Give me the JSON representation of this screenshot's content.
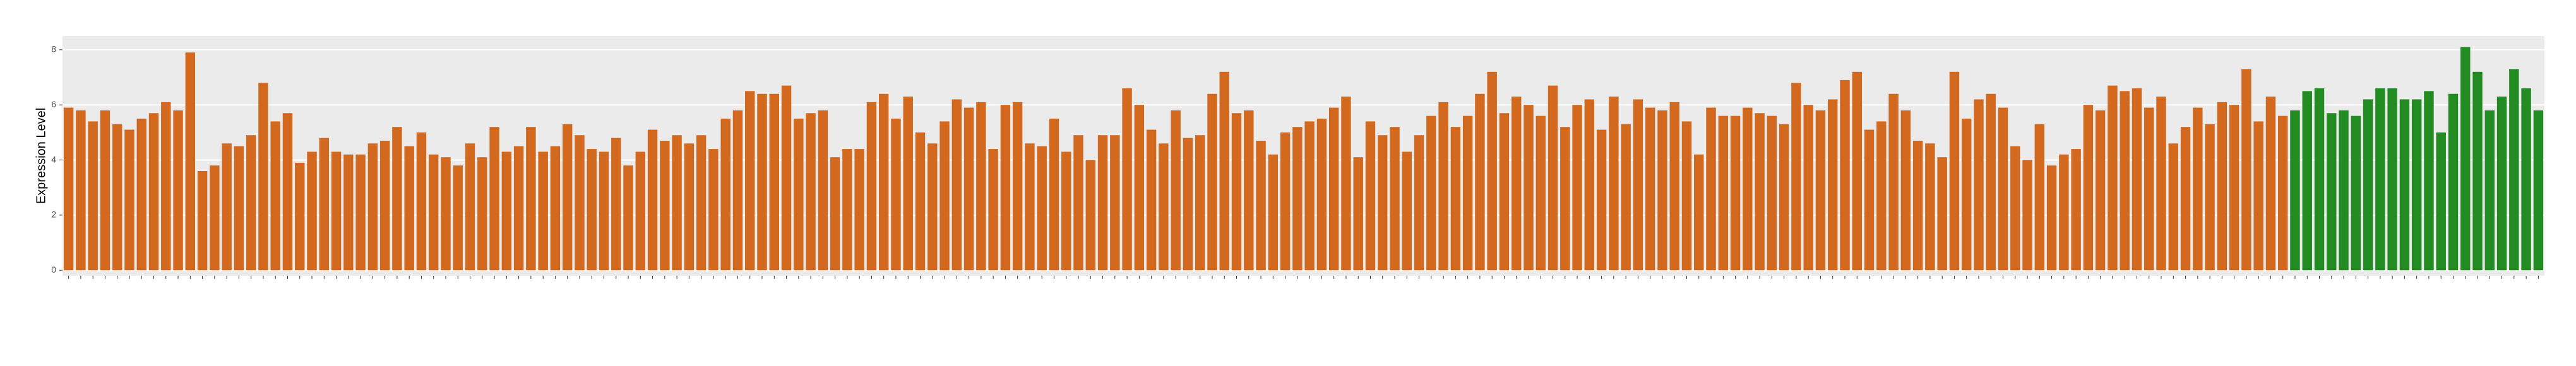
{
  "chart_data": {
    "type": "bar",
    "y_label": "Expression Level",
    "ylim": [
      -0.2,
      8.5
    ],
    "yticks": [
      0,
      2,
      4,
      6,
      8
    ],
    "grid": true,
    "categories": [
      null,
      null,
      null,
      null,
      null,
      null,
      null,
      null,
      null,
      null,
      null,
      null,
      null,
      null,
      null,
      null,
      null,
      null,
      null,
      null,
      null,
      null,
      null,
      null,
      null,
      null,
      null,
      null,
      null,
      null,
      null,
      null,
      null,
      null,
      null,
      null,
      null,
      null,
      null,
      null,
      null,
      null,
      null,
      null,
      null,
      null,
      null,
      null,
      null,
      null,
      null,
      null,
      null,
      null,
      null,
      null,
      null,
      null,
      null,
      null,
      null,
      null,
      null,
      null,
      null,
      null,
      null,
      null,
      null,
      null,
      null,
      null,
      null,
      null,
      null,
      null,
      null,
      null,
      null,
      null,
      null,
      null,
      null,
      null,
      null,
      null,
      null,
      null,
      null,
      null,
      null,
      null,
      null,
      null,
      null,
      null,
      null,
      null,
      null,
      null,
      null,
      null,
      null,
      null,
      null,
      null,
      null,
      null,
      null,
      null,
      null,
      null,
      null,
      null,
      null,
      null,
      null,
      null,
      null,
      null,
      null,
      null,
      null,
      null,
      null,
      null,
      null,
      null,
      null,
      null,
      null,
      null,
      null,
      null,
      null,
      null,
      null,
      null,
      null,
      null,
      null,
      null,
      null,
      null,
      null,
      null,
      null,
      null,
      null,
      null,
      null,
      null,
      null,
      null,
      null,
      null,
      null,
      null,
      null,
      null,
      null,
      null,
      null,
      null,
      null,
      null,
      null,
      null,
      null,
      null,
      null,
      null,
      null,
      null,
      null,
      null,
      null,
      null,
      null,
      null,
      null,
      null,
      null,
      null,
      null,
      null,
      null,
      null,
      null,
      null,
      null,
      null,
      null,
      null,
      null,
      null,
      null,
      null,
      null,
      null,
      null,
      null,
      null,
      null
    ],
    "values": [
      5.9,
      5.8,
      5.4,
      5.8,
      5.3,
      5.1,
      5.5,
      5.7,
      6.1,
      5.8,
      7.9,
      3.6,
      3.8,
      4.6,
      4.5,
      4.9,
      6.8,
      5.4,
      5.7,
      3.9,
      4.3,
      4.8,
      4.3,
      4.2,
      4.2,
      4.6,
      4.7,
      5.2,
      4.5,
      5.0,
      4.2,
      4.1,
      3.8,
      4.6,
      4.1,
      5.2,
      4.3,
      4.5,
      5.2,
      4.3,
      4.5,
      5.3,
      4.9,
      4.4,
      4.3,
      4.8,
      3.8,
      4.3,
      5.1,
      4.7,
      4.9,
      4.6,
      4.9,
      4.4,
      5.5,
      5.8,
      6.5,
      6.4,
      6.4,
      6.7,
      5.5,
      5.7,
      5.8,
      4.1,
      4.4,
      4.4,
      6.1,
      6.4,
      5.5,
      6.3,
      5.0,
      4.6,
      5.4,
      6.2,
      5.9,
      6.1,
      4.4,
      6.0,
      6.1,
      4.6,
      4.5,
      5.5,
      4.3,
      4.9,
      4.0,
      4.9,
      4.9,
      6.6,
      6.0,
      5.1,
      4.6,
      5.8,
      4.8,
      4.9,
      6.4,
      7.2,
      5.7,
      5.8,
      4.7,
      4.2,
      5.0,
      5.2,
      5.4,
      5.5,
      5.9,
      6.3,
      4.1,
      5.4,
      4.9,
      5.2,
      4.3,
      4.9,
      5.6,
      6.1,
      5.2,
      5.6,
      6.4,
      7.2,
      5.7,
      6.3,
      6.0,
      5.6,
      6.7,
      5.2,
      6.0,
      6.2,
      5.1,
      6.3,
      5.3,
      6.2,
      5.9,
      5.8,
      6.1,
      5.4,
      4.2,
      5.9,
      5.6,
      5.6,
      5.9,
      5.7,
      5.6,
      5.3,
      6.8,
      6.0,
      5.8,
      6.2,
      6.9,
      7.2,
      5.1,
      5.4,
      6.4,
      5.8,
      4.7,
      4.6,
      4.1,
      7.2,
      5.5,
      6.2,
      6.4,
      5.9,
      4.5,
      4.0,
      5.3,
      3.8,
      4.2,
      4.4,
      6.0,
      5.8,
      6.7,
      6.5,
      6.6,
      5.9,
      6.3,
      4.6,
      5.2,
      5.9,
      5.3,
      6.1,
      6.0,
      7.3,
      5.4,
      6.3,
      5.6,
      5.8,
      6.5,
      6.6,
      5.7,
      5.8,
      5.6,
      6.2,
      6.6,
      6.6,
      6.2,
      6.2,
      6.5,
      5.0,
      6.4,
      8.1,
      7.2,
      5.8,
      6.3,
      7.3,
      6.6,
      5.8
    ],
    "colors": [
      "#d2691e",
      "#d2691e",
      "#d2691e",
      "#d2691e",
      "#d2691e",
      "#d2691e",
      "#d2691e",
      "#d2691e",
      "#d2691e",
      "#d2691e",
      "#d2691e",
      "#d2691e",
      "#d2691e",
      "#d2691e",
      "#d2691e",
      "#d2691e",
      "#d2691e",
      "#d2691e",
      "#d2691e",
      "#d2691e",
      "#d2691e",
      "#d2691e",
      "#d2691e",
      "#d2691e",
      "#d2691e",
      "#d2691e",
      "#d2691e",
      "#d2691e",
      "#d2691e",
      "#d2691e",
      "#d2691e",
      "#d2691e",
      "#d2691e",
      "#d2691e",
      "#d2691e",
      "#d2691e",
      "#d2691e",
      "#d2691e",
      "#d2691e",
      "#d2691e",
      "#d2691e",
      "#d2691e",
      "#d2691e",
      "#d2691e",
      "#d2691e",
      "#d2691e",
      "#d2691e",
      "#d2691e",
      "#d2691e",
      "#d2691e",
      "#d2691e",
      "#d2691e",
      "#d2691e",
      "#d2691e",
      "#d2691e",
      "#d2691e",
      "#d2691e",
      "#d2691e",
      "#d2691e",
      "#d2691e",
      "#d2691e",
      "#d2691e",
      "#d2691e",
      "#d2691e",
      "#d2691e",
      "#d2691e",
      "#d2691e",
      "#d2691e",
      "#d2691e",
      "#d2691e",
      "#d2691e",
      "#d2691e",
      "#d2691e",
      "#d2691e",
      "#d2691e",
      "#d2691e",
      "#d2691e",
      "#d2691e",
      "#d2691e",
      "#d2691e",
      "#d2691e",
      "#d2691e",
      "#d2691e",
      "#d2691e",
      "#d2691e",
      "#d2691e",
      "#d2691e",
      "#d2691e",
      "#d2691e",
      "#d2691e",
      "#d2691e",
      "#d2691e",
      "#d2691e",
      "#d2691e",
      "#d2691e",
      "#d2691e",
      "#d2691e",
      "#d2691e",
      "#d2691e",
      "#d2691e",
      "#d2691e",
      "#d2691e",
      "#d2691e",
      "#d2691e",
      "#d2691e",
      "#d2691e",
      "#d2691e",
      "#d2691e",
      "#d2691e",
      "#d2691e",
      "#d2691e",
      "#d2691e",
      "#d2691e",
      "#d2691e",
      "#d2691e",
      "#d2691e",
      "#d2691e",
      "#d2691e",
      "#d2691e",
      "#d2691e",
      "#d2691e",
      "#d2691e",
      "#d2691e",
      "#d2691e",
      "#d2691e",
      "#d2691e",
      "#d2691e",
      "#d2691e",
      "#d2691e",
      "#d2691e",
      "#d2691e",
      "#d2691e",
      "#d2691e",
      "#d2691e",
      "#d2691e",
      "#d2691e",
      "#d2691e",
      "#d2691e",
      "#d2691e",
      "#d2691e",
      "#d2691e",
      "#d2691e",
      "#d2691e",
      "#d2691e",
      "#d2691e",
      "#d2691e",
      "#d2691e",
      "#d2691e",
      "#d2691e",
      "#d2691e",
      "#d2691e",
      "#d2691e",
      "#d2691e",
      "#d2691e",
      "#d2691e",
      "#d2691e",
      "#d2691e",
      "#d2691e",
      "#d2691e",
      "#d2691e",
      "#d2691e",
      "#d2691e",
      "#d2691e",
      "#d2691e",
      "#d2691e",
      "#d2691e",
      "#d2691e",
      "#d2691e",
      "#d2691e",
      "#d2691e",
      "#d2691e",
      "#d2691e",
      "#d2691e",
      "#d2691e",
      "#d2691e",
      "#d2691e",
      "#d2691e",
      "#d2691e",
      "#d2691e",
      "#d2691e",
      "#d2691e",
      "#d2691e",
      "#d2691e",
      "#228b22",
      "#228b22",
      "#228b22",
      "#228b22",
      "#228b22",
      "#228b22",
      "#228b22",
      "#228b22",
      "#228b22",
      "#228b22",
      "#228b22",
      "#228b22",
      "#228b22",
      "#228b22",
      "#228b22",
      "#228b22",
      "#228b22",
      "#228b22",
      "#228b22",
      "#228b22",
      "#228b22"
    ]
  }
}
